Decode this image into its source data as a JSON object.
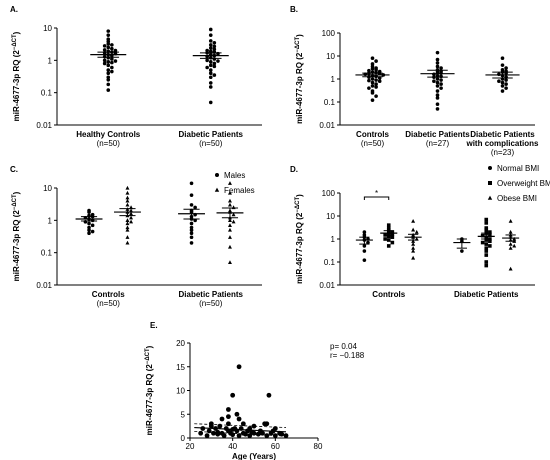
{
  "chart_data": [
    {
      "type": "dotplot",
      "panel_label": "A.",
      "ylabel": "miR-4677-3p RQ (2",
      "ylabel_sup": "−ΔCT",
      "ylabel_end": ")",
      "log_y": true,
      "ylim": [
        0.01,
        10
      ],
      "yticks": [
        0.01,
        0.1,
        1,
        10
      ],
      "categories": [
        [
          "Healthy Controls"
        ],
        [
          "Diabetic Patients"
        ]
      ],
      "category_notes": [
        "(n=50)",
        "(n=50)"
      ],
      "series": [
        {
          "marker": "circle",
          "color": "#000000",
          "values": [
            [
              8,
              6,
              4.5,
              3.8,
              3.2,
              3,
              2.8,
              2.5,
              2.3,
              2.1,
              2,
              1.9,
              1.8,
              1.7,
              1.6,
              1.5,
              1.4,
              1.3,
              1.2,
              1.1,
              1,
              0.95,
              0.9,
              0.85,
              0.8,
              0.7,
              0.6,
              0.5,
              0.45,
              0.4,
              0.3,
              0.25,
              0.18,
              0.12
            ],
            [
              9,
              6,
              4,
              3.5,
              3,
              2.7,
              2.4,
              2.2,
              2,
              1.9,
              1.8,
              1.7,
              1.6,
              1.5,
              1.4,
              1.3,
              1.2,
              1.1,
              1,
              0.95,
              0.9,
              0.8,
              0.7,
              0.65,
              0.6,
              0.5,
              0.4,
              0.35,
              0.3,
              0.2,
              0.15,
              0.05
            ]
          ],
          "mean": [
            1.5,
            1.4
          ],
          "err_low": [
            1.25,
            1.15
          ],
          "err_high": [
            1.8,
            1.7
          ]
        }
      ]
    },
    {
      "type": "dotplot",
      "panel_label": "B.",
      "ylabel": "miR-4677-3p RQ (2",
      "ylabel_sup": "−ΔCT",
      "ylabel_end": ")",
      "log_y": true,
      "ylim": [
        0.01,
        100
      ],
      "yticks": [
        0.01,
        0.1,
        1,
        10,
        100
      ],
      "categories": [
        [
          "Controls"
        ],
        [
          "Diabetic Patients"
        ],
        [
          "Diabetic Patients",
          "with complications"
        ]
      ],
      "category_notes": [
        "(n=50)",
        "(n=27)",
        "(n=23)"
      ],
      "series": [
        {
          "marker": "circle",
          "color": "#000000",
          "values": [
            [
              8,
              6,
              4.5,
              3.5,
              3,
              2.8,
              2.5,
              2.3,
              2.1,
              2,
              1.9,
              1.8,
              1.7,
              1.6,
              1.5,
              1.4,
              1.3,
              1.2,
              1.1,
              1,
              0.9,
              0.85,
              0.8,
              0.7,
              0.6,
              0.5,
              0.45,
              0.4,
              0.3,
              0.25,
              0.18,
              0.12
            ],
            [
              14,
              7,
              5,
              3.5,
              3,
              2.5,
              2.2,
              2,
              1.8,
              1.6,
              1.4,
              1.3,
              1.2,
              1,
              0.9,
              0.8,
              0.7,
              0.6,
              0.5,
              0.4,
              0.3,
              0.2,
              0.15,
              0.08,
              0.05
            ],
            [
              8,
              4,
              3,
              2.5,
              2.2,
              2,
              1.8,
              1.6,
              1.4,
              1.2,
              1,
              0.9,
              0.8,
              0.7,
              0.6,
              0.5,
              0.4,
              0.3
            ]
          ],
          "mean": [
            1.5,
            1.7,
            1.5
          ],
          "err_low": [
            1.25,
            1.2,
            1.1
          ],
          "err_high": [
            1.8,
            2.4,
            2
          ]
        }
      ]
    },
    {
      "type": "dotplot",
      "panel_label": "C.",
      "ylabel": "miR-4677-3p RQ (2",
      "ylabel_sup": "−ΔCT",
      "ylabel_end": ")",
      "log_y": true,
      "ylim": [
        0.01,
        10
      ],
      "yticks": [
        0.01,
        0.1,
        1,
        10
      ],
      "categories": [
        [
          "Controls"
        ],
        [
          "Diabetic Patients"
        ]
      ],
      "category_notes": [
        "(n=50)",
        "(n=50)"
      ],
      "series": [
        {
          "name": "Males",
          "marker": "circle",
          "color": "#000000",
          "values": [
            [
              2,
              1.8,
              1.5,
              1.4,
              1.3,
              1.2,
              1.1,
              1,
              0.9,
              0.8,
              0.7,
              0.6,
              0.5,
              0.45,
              0.4
            ],
            [
              14,
              6,
              3,
              2.5,
              2,
              1.8,
              1.5,
              1.3,
              1.1,
              1,
              0.8,
              0.6,
              0.5,
              0.4,
              0.3,
              0.2
            ]
          ],
          "mean": [
            1.1,
            1.6
          ],
          "err_low": [
            0.95,
            1.1
          ],
          "err_high": [
            1.3,
            2.2
          ]
        },
        {
          "name": "Females",
          "marker": "triangle",
          "color": "#000000",
          "values": [
            [
              10,
              7,
              5,
              4,
              3,
              2.5,
              2.2,
              2,
              1.8,
              1.6,
              1.4,
              1.2,
              1,
              0.9,
              0.8,
              0.6,
              0.5,
              0.3,
              0.2
            ],
            [
              14,
              7,
              4,
              3,
              2.5,
              2,
              1.8,
              1.5,
              1.2,
              1,
              0.9,
              0.7,
              0.5,
              0.3,
              0.15,
              0.05
            ]
          ],
          "mean": [
            1.8,
            1.7
          ],
          "err_low": [
            1.4,
            1.2
          ],
          "err_high": [
            2.3,
            2.4
          ]
        }
      ]
    },
    {
      "type": "dotplot",
      "panel_label": "D.",
      "ylabel": "miR-4677-3p RQ (2",
      "ylabel_sup": "−ΔCT",
      "ylabel_end": ")",
      "log_y": true,
      "ylim": [
        0.01,
        100
      ],
      "yticks": [
        0.01,
        0.1,
        1,
        10,
        100
      ],
      "categories": [
        [
          "Controls"
        ],
        [
          "Diabetic Patients"
        ]
      ],
      "annotation": "*",
      "series": [
        {
          "name": "Normal BMI",
          "marker": "circle",
          "color": "#000000",
          "values": [
            [
              2,
              1.5,
              1.2,
              1,
              0.9,
              0.7,
              0.5,
              0.3,
              0.12
            ],
            [
              1,
              0.8,
              0.3
            ]
          ],
          "mean": [
            0.9,
            0.7
          ],
          "err_low": [
            0.6,
            0.4
          ],
          "err_high": [
            1.2,
            1
          ]
        },
        {
          "name": "Overweight BMI",
          "marker": "square",
          "color": "#000000",
          "values": [
            [
              4,
              3,
              2.5,
              2,
              1.8,
              1.6,
              1.5,
              1.3,
              1.2,
              1,
              0.9,
              0.7,
              0.5
            ],
            [
              7,
              5,
              3,
              2.5,
              2,
              1.8,
              1.6,
              1.4,
              1.2,
              1,
              0.9,
              0.8,
              0.7,
              0.6,
              0.5,
              0.4,
              0.3,
              0.2,
              0.1,
              0.07
            ]
          ],
          "mean": [
            1.8,
            1.3
          ],
          "err_low": [
            1.4,
            1
          ],
          "err_high": [
            2.3,
            1.8
          ]
        },
        {
          "name": "Obese BMI",
          "marker": "triangle",
          "color": "#000000",
          "values": [
            [
              6,
              2.5,
              2,
              1.5,
              1.2,
              1,
              0.8,
              0.6,
              0.4,
              0.3,
              0.15
            ],
            [
              6,
              2,
              1.5,
              1.2,
              1,
              0.9,
              0.8,
              0.6,
              0.5,
              0.4,
              0.05
            ]
          ],
          "mean": [
            1.2,
            1.1
          ],
          "err_low": [
            0.9,
            0.8
          ],
          "err_high": [
            1.6,
            1.5
          ]
        }
      ]
    },
    {
      "type": "scatter",
      "panel_label": "E.",
      "ylabel": "miR-4677-3p RQ (2",
      "ylabel_sup": "−ΔCT",
      "ylabel_end": ")",
      "xlabel": "Age (Years)",
      "xlim": [
        20,
        80
      ],
      "xticks": [
        20,
        40,
        60,
        80
      ],
      "ylim": [
        0,
        20
      ],
      "yticks": [
        0,
        5,
        10,
        15,
        20
      ],
      "annotations": [
        "p= 0.04",
        "r= −0.188"
      ],
      "color": "#000000",
      "x": [
        25,
        26,
        28,
        29,
        30,
        31,
        32,
        33,
        33,
        34,
        35,
        35,
        36,
        37,
        38,
        38,
        39,
        40,
        40,
        41,
        42,
        42,
        43,
        43,
        44,
        45,
        45,
        46,
        47,
        48,
        48,
        49,
        50,
        50,
        52,
        53,
        54,
        55,
        56,
        57,
        58,
        59,
        60,
        60,
        62,
        63,
        65,
        38,
        43,
        56,
        40,
        38,
        30
      ],
      "y": [
        1,
        2,
        0.5,
        1.5,
        3,
        1,
        2,
        0.8,
        1.2,
        2.5,
        1,
        4,
        0.5,
        2,
        1.5,
        3,
        1,
        9,
        0.7,
        2,
        1.5,
        5,
        0.5,
        15,
        2,
        1,
        3,
        0.8,
        1.5,
        2,
        0.5,
        1.2,
        1,
        2.5,
        0.8,
        1.5,
        1,
        3,
        0.5,
        9,
        1,
        1.5,
        0.5,
        2,
        1,
        0.8,
        0.5,
        4.5,
        4,
        3,
        1.8,
        6,
        2.5
      ],
      "fit": {
        "x": [
          22,
          65
        ],
        "y": [
          2.2,
          1.3
        ],
        "ci_upper": [
          3,
          2.2
        ],
        "ci_lower": [
          1.4,
          0.4
        ]
      }
    }
  ]
}
